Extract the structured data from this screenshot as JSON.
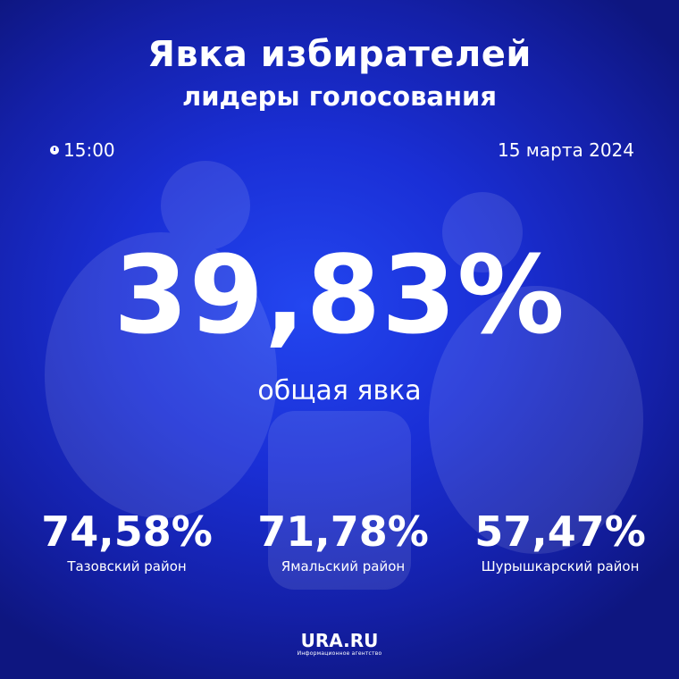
{
  "header": {
    "title": "Явка избирателей",
    "subtitle": "лидеры голосования"
  },
  "meta": {
    "time": "15:00",
    "date": "15 марта 2024"
  },
  "turnout": {
    "value": "39,83%",
    "label": "общая явка"
  },
  "leaders": [
    {
      "value": "74,58%",
      "district": "Тазовский район"
    },
    {
      "value": "71,78%",
      "district": "Ямальский район"
    },
    {
      "value": "57,47%",
      "district": "Шурышкарский район"
    }
  ],
  "logo": {
    "brand": "URA.RU",
    "tagline": "Информационное агентство"
  },
  "colors": {
    "background": "#1a2fd6",
    "text": "#ffffff"
  }
}
